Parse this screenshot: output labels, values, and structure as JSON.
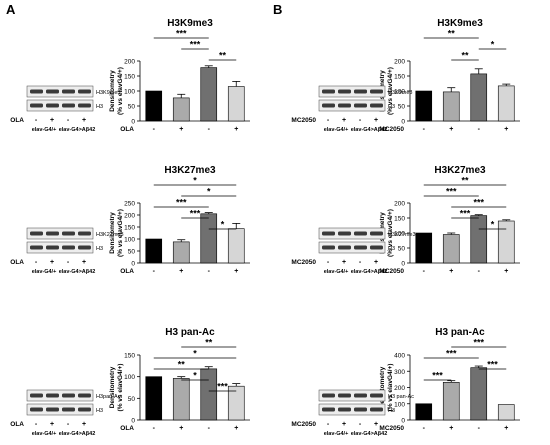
{
  "panels": [
    {
      "letter": "A",
      "treatment": "OLA"
    },
    {
      "letter": "B",
      "treatment": "MC2050"
    }
  ],
  "blot": {
    "marks": {
      "minus": "-",
      "plus": "+"
    },
    "genotypes": [
      "elav-G4/+",
      "elav-G4>Aβ42"
    ]
  },
  "colors": {
    "bars": [
      "#000000",
      "#aaaaaa",
      "#707070",
      "#d6d6d6"
    ],
    "blot_band": "#3a3a3a"
  },
  "chart_data": [
    {
      "id": "A1",
      "type": "bar",
      "title": "H3K9me3",
      "ylabel": "Densitometry\n(% vs elavG4/+)",
      "ylim": [
        0,
        200
      ],
      "yticks": [
        0,
        50,
        100,
        150,
        200
      ],
      "categories": [
        "-",
        "+",
        "-",
        "+"
      ],
      "xlabel": "OLA",
      "values": [
        100,
        77,
        178,
        115
      ],
      "errors": [
        0,
        12,
        6,
        17
      ],
      "blot_labels": [
        "H3K9me3",
        "H3"
      ],
      "significance": [
        {
          "a": 0,
          "b": 2,
          "label": "***"
        },
        {
          "a": 1,
          "b": 2,
          "label": "***"
        },
        {
          "a": 2,
          "b": 3,
          "label": "**"
        }
      ]
    },
    {
      "id": "A2",
      "type": "bar",
      "title": "H3K27me3",
      "ylabel": "Densitometry\n(% vs elavG4/+)",
      "ylim": [
        0,
        250
      ],
      "yticks": [
        0,
        50,
        100,
        150,
        200,
        250
      ],
      "categories": [
        "-",
        "+",
        "-",
        "+"
      ],
      "xlabel": "OLA",
      "values": [
        100,
        88,
        205,
        143
      ],
      "errors": [
        0,
        9,
        5,
        22
      ],
      "blot_labels": [
        "H3K27me3",
        "H3"
      ],
      "significance": [
        {
          "a": 0,
          "b": 3,
          "label": "*"
        },
        {
          "a": 1,
          "b": 3,
          "label": "*"
        },
        {
          "a": 0,
          "b": 2,
          "label": "***"
        },
        {
          "a": 1,
          "b": 2,
          "label": "***"
        },
        {
          "a": 2,
          "b": 3,
          "label": "*"
        }
      ]
    },
    {
      "id": "A3",
      "type": "bar",
      "title": "H3 pan-Ac",
      "ylabel": "Densitometry\n(% vs elavG4/+)",
      "ylim": [
        0,
        150
      ],
      "yticks": [
        0,
        50,
        100,
        150
      ],
      "categories": [
        "-",
        "+",
        "-",
        "+"
      ],
      "xlabel": "OLA",
      "values": [
        100,
        96,
        118,
        78
      ],
      "errors": [
        0,
        4,
        5,
        6
      ],
      "blot_labels": [
        "H3pan-Ac",
        "H3"
      ],
      "significance": [
        {
          "a": 1,
          "b": 3,
          "label": "**"
        },
        {
          "a": 0,
          "b": 3,
          "label": "*"
        },
        {
          "a": 0,
          "b": 2,
          "label": "**"
        },
        {
          "a": 1,
          "b": 2,
          "label": "*"
        },
        {
          "a": 2,
          "b": 3,
          "label": "***"
        }
      ]
    },
    {
      "id": "B1",
      "type": "bar",
      "title": "H3K9me3",
      "ylabel": "Densitometry\n(% vs elavG4/+)",
      "ylim": [
        0,
        200
      ],
      "yticks": [
        0,
        50,
        100,
        150,
        200
      ],
      "categories": [
        "-",
        "+",
        "-",
        "+"
      ],
      "xlabel": "MC2050",
      "values": [
        100,
        97,
        157,
        117
      ],
      "errors": [
        0,
        14,
        17,
        6
      ],
      "blot_labels": [
        "H3K9me3",
        "H3"
      ],
      "significance": [
        {
          "a": 0,
          "b": 2,
          "label": "**"
        },
        {
          "a": 2,
          "b": 3,
          "label": "*"
        },
        {
          "a": 1,
          "b": 2,
          "label": "**"
        }
      ]
    },
    {
      "id": "B2",
      "type": "bar",
      "title": "H3K27me3",
      "ylabel": "Densitometry\n(% vs elavG4/+)",
      "ylim": [
        0,
        200
      ],
      "yticks": [
        0,
        50,
        100,
        150,
        200
      ],
      "categories": [
        "-",
        "+",
        "-",
        "+"
      ],
      "xlabel": "MC2050",
      "values": [
        100,
        95,
        158,
        140
      ],
      "errors": [
        0,
        5,
        3,
        4
      ],
      "blot_labels": [
        "H3K27me3",
        "H3"
      ],
      "significance": [
        {
          "a": 0,
          "b": 3,
          "label": "**"
        },
        {
          "a": 0,
          "b": 2,
          "label": "***"
        },
        {
          "a": 1,
          "b": 3,
          "label": "***"
        },
        {
          "a": 1,
          "b": 2,
          "label": "***"
        },
        {
          "a": 2,
          "b": 3,
          "label": "*"
        }
      ]
    },
    {
      "id": "B3",
      "type": "bar",
      "title": "H3 pan-Ac",
      "ylabel": "Densitometry\n(% vs elavG4/+)",
      "ylim": [
        0,
        400
      ],
      "yticks": [
        0,
        100,
        200,
        300,
        400
      ],
      "categories": [
        "-",
        "+",
        "-",
        "+"
      ],
      "xlabel": "MC2050",
      "values": [
        100,
        232,
        322,
        95
      ],
      "errors": [
        0,
        10,
        10,
        0
      ],
      "blot_labels": [
        "H3 pan-Ac",
        "H3"
      ],
      "significance": [
        {
          "a": 1,
          "b": 3,
          "label": "***"
        },
        {
          "a": 0,
          "b": 2,
          "label": "***"
        },
        {
          "a": 2,
          "b": 3,
          "label": "***"
        },
        {
          "a": 0,
          "b": 1,
          "label": "***"
        }
      ]
    }
  ]
}
